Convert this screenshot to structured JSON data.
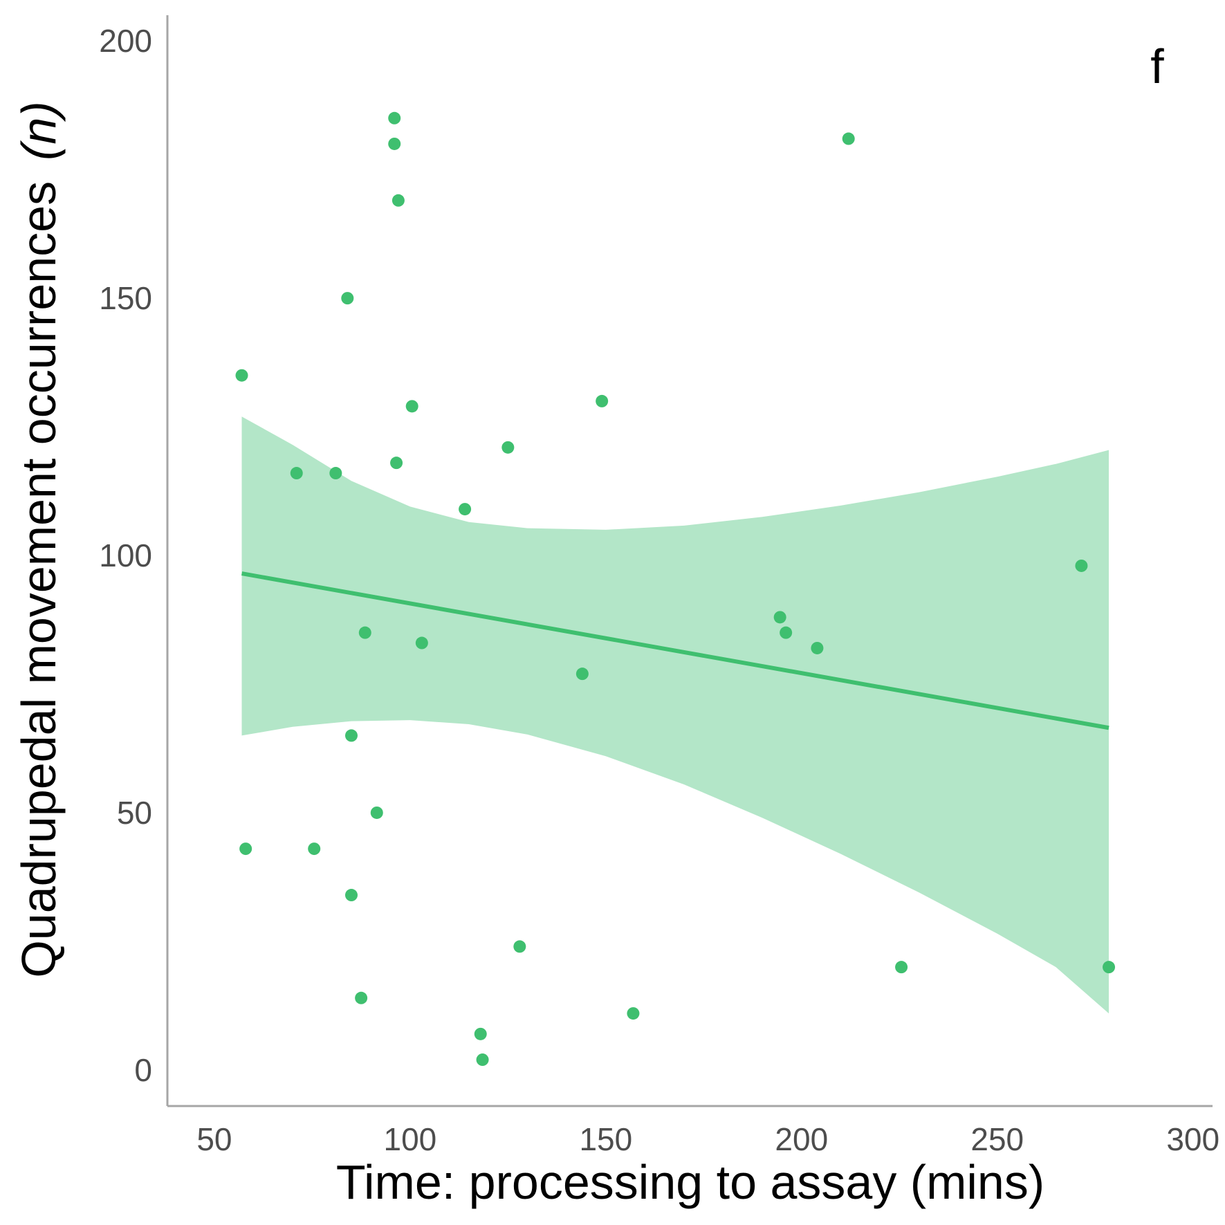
{
  "chart_data": {
    "type": "scatter",
    "panel_label": "f",
    "xlabel": "Time: processing to assay (mins)",
    "ylabel_main": "Quadrupedal movement occurrences",
    "ylabel_unit": "(n)",
    "xlim": [
      38,
      305
    ],
    "ylim": [
      -7,
      205
    ],
    "xticks": [
      50,
      100,
      150,
      200,
      250,
      300
    ],
    "yticks": [
      0,
      50,
      100,
      150,
      200
    ],
    "grid": false,
    "colors": {
      "points": "#3fbf6f",
      "fit_line": "#3fbf6f",
      "ci_band": "#b3e6c8",
      "axis": "#a6a6a6",
      "tick_text": "#4d4d4d"
    },
    "points": [
      {
        "x": 57,
        "y": 135
      },
      {
        "x": 58,
        "y": 43
      },
      {
        "x": 71,
        "y": 116
      },
      {
        "x": 75.5,
        "y": 43
      },
      {
        "x": 81,
        "y": 116
      },
      {
        "x": 84,
        "y": 150
      },
      {
        "x": 85,
        "y": 65
      },
      {
        "x": 85,
        "y": 34
      },
      {
        "x": 87.5,
        "y": 14
      },
      {
        "x": 88.5,
        "y": 85
      },
      {
        "x": 91.5,
        "y": 50
      },
      {
        "x": 96,
        "y": 185
      },
      {
        "x": 96,
        "y": 180
      },
      {
        "x": 96.5,
        "y": 118
      },
      {
        "x": 97,
        "y": 169
      },
      {
        "x": 100.5,
        "y": 129
      },
      {
        "x": 103,
        "y": 83
      },
      {
        "x": 114,
        "y": 109
      },
      {
        "x": 118,
        "y": 7
      },
      {
        "x": 118.5,
        "y": 2
      },
      {
        "x": 125,
        "y": 121
      },
      {
        "x": 128,
        "y": 24
      },
      {
        "x": 144,
        "y": 77
      },
      {
        "x": 149,
        "y": 130
      },
      {
        "x": 157,
        "y": 11
      },
      {
        "x": 194.5,
        "y": 88
      },
      {
        "x": 196,
        "y": 85
      },
      {
        "x": 204,
        "y": 82
      },
      {
        "x": 212,
        "y": 181
      },
      {
        "x": 225.5,
        "y": 20
      },
      {
        "x": 271.5,
        "y": 98
      },
      {
        "x": 278.5,
        "y": 20
      }
    ],
    "fit": {
      "x": [
        57,
        278.5
      ],
      "y": [
        96.5,
        66.5
      ]
    },
    "ci_band": {
      "x": [
        57,
        70,
        85,
        100,
        115,
        130,
        150,
        170,
        190,
        210,
        230,
        250,
        265,
        278.5
      ],
      "upper": [
        127,
        121.5,
        114.5,
        109.5,
        106.5,
        105.3,
        105,
        105.8,
        107.5,
        109.7,
        112.3,
        115.3,
        117.8,
        120.5
      ],
      "lower": [
        65,
        66.7,
        67.8,
        68,
        67.2,
        65.2,
        61,
        55.5,
        49,
        42,
        34.5,
        26.5,
        20,
        11
      ]
    }
  }
}
